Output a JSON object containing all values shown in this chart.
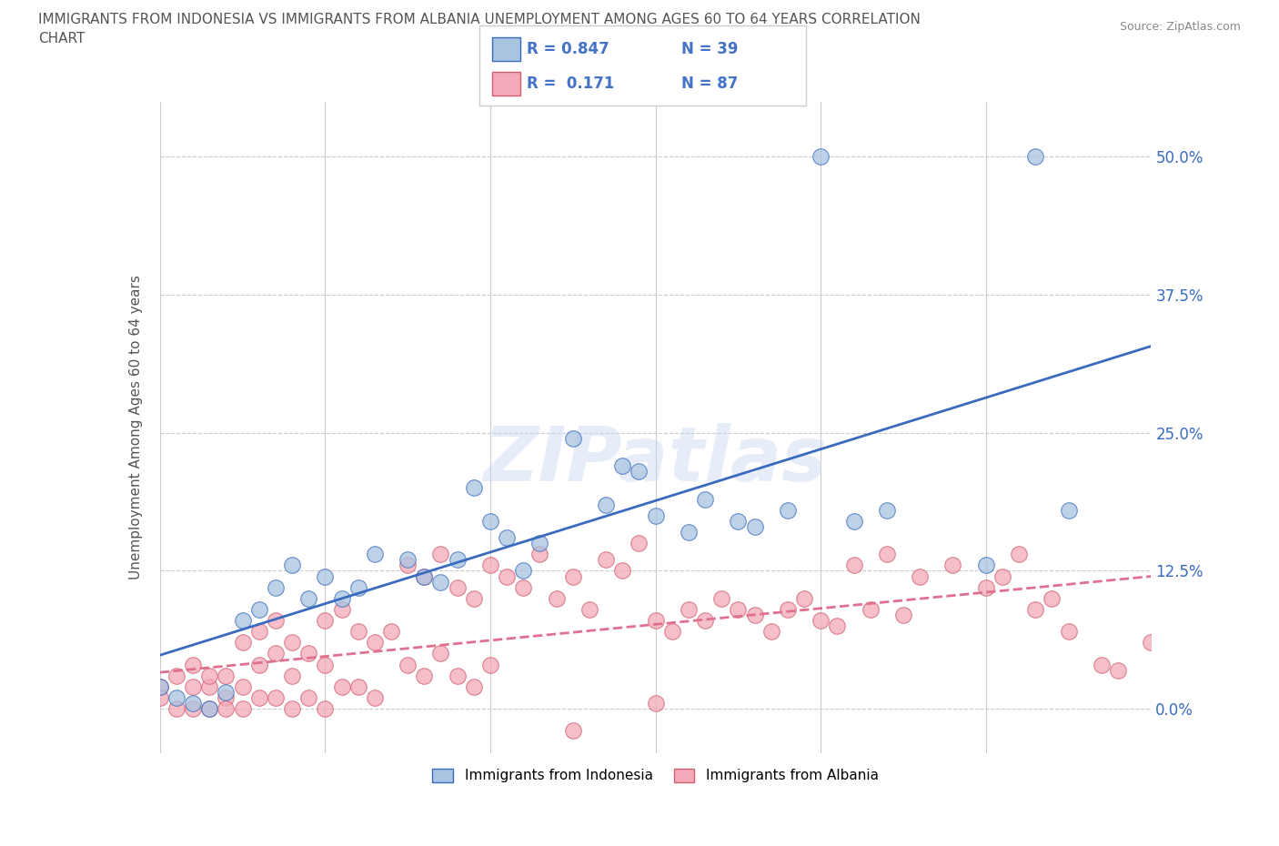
{
  "title_line1": "IMMIGRANTS FROM INDONESIA VS IMMIGRANTS FROM ALBANIA UNEMPLOYMENT AMONG AGES 60 TO 64 YEARS CORRELATION",
  "title_line2": "CHART",
  "source": "Source: ZipAtlas.com",
  "ylabel": "Unemployment Among Ages 60 to 64 years",
  "y_ticks_right": [
    "0.0%",
    "12.5%",
    "25.0%",
    "37.5%",
    "50.0%"
  ],
  "y_tick_vals": [
    0.0,
    0.125,
    0.25,
    0.375,
    0.5
  ],
  "watermark": "ZIPatlas",
  "indonesia_R": 0.847,
  "indonesia_N": 39,
  "albania_R": 0.171,
  "albania_N": 87,
  "indonesia_color": "#a8c4e0",
  "albania_color": "#f4a9b8",
  "indonesia_line_color": "#3a6bbf",
  "albania_line_color": "#e07090",
  "albania_edge_color": "#d06070",
  "legend_R_color": "#4472c4",
  "indonesia_points_x": [
    0.001,
    0.002,
    0.003,
    0.004,
    0.005,
    0.006,
    0.007,
    0.008,
    0.009,
    0.01,
    0.011,
    0.012,
    0.013,
    0.015,
    0.016,
    0.017,
    0.018,
    0.019,
    0.02,
    0.021,
    0.022,
    0.023,
    0.025,
    0.027,
    0.028,
    0.029,
    0.03,
    0.032,
    0.033,
    0.035,
    0.036,
    0.038,
    0.04,
    0.042,
    0.044,
    0.05,
    0.053,
    0.055,
    0.0
  ],
  "indonesia_points_y": [
    0.01,
    0.005,
    0.0,
    0.015,
    0.08,
    0.09,
    0.11,
    0.13,
    0.1,
    0.12,
    0.1,
    0.11,
    0.14,
    0.135,
    0.12,
    0.115,
    0.135,
    0.2,
    0.17,
    0.155,
    0.125,
    0.15,
    0.245,
    0.185,
    0.22,
    0.215,
    0.175,
    0.16,
    0.19,
    0.17,
    0.165,
    0.18,
    0.5,
    0.17,
    0.18,
    0.13,
    0.5,
    0.18,
    0.02
  ],
  "albania_points_x": [
    0.0,
    0.0,
    0.001,
    0.001,
    0.002,
    0.002,
    0.002,
    0.003,
    0.003,
    0.003,
    0.004,
    0.004,
    0.004,
    0.005,
    0.005,
    0.005,
    0.006,
    0.006,
    0.006,
    0.007,
    0.007,
    0.007,
    0.008,
    0.008,
    0.008,
    0.009,
    0.009,
    0.01,
    0.01,
    0.01,
    0.011,
    0.011,
    0.012,
    0.012,
    0.013,
    0.013,
    0.014,
    0.015,
    0.015,
    0.016,
    0.016,
    0.017,
    0.017,
    0.018,
    0.018,
    0.019,
    0.019,
    0.02,
    0.02,
    0.021,
    0.022,
    0.023,
    0.024,
    0.025,
    0.026,
    0.027,
    0.028,
    0.029,
    0.03,
    0.031,
    0.032,
    0.033,
    0.034,
    0.035,
    0.036,
    0.037,
    0.038,
    0.039,
    0.04,
    0.041,
    0.042,
    0.043,
    0.044,
    0.045,
    0.046,
    0.048,
    0.05,
    0.051,
    0.052,
    0.053,
    0.054,
    0.055,
    0.057,
    0.058,
    0.06,
    0.025,
    0.03
  ],
  "albania_points_y": [
    0.02,
    0.01,
    0.03,
    0.0,
    0.04,
    0.02,
    0.0,
    0.02,
    0.03,
    0.0,
    0.03,
    0.01,
    0.0,
    0.06,
    0.02,
    0.0,
    0.07,
    0.04,
    0.01,
    0.08,
    0.05,
    0.01,
    0.06,
    0.03,
    0.0,
    0.05,
    0.01,
    0.08,
    0.04,
    0.0,
    0.09,
    0.02,
    0.07,
    0.02,
    0.06,
    0.01,
    0.07,
    0.13,
    0.04,
    0.12,
    0.03,
    0.14,
    0.05,
    0.11,
    0.03,
    0.1,
    0.02,
    0.13,
    0.04,
    0.12,
    0.11,
    0.14,
    0.1,
    0.12,
    0.09,
    0.135,
    0.125,
    0.15,
    0.08,
    0.07,
    0.09,
    0.08,
    0.1,
    0.09,
    0.085,
    0.07,
    0.09,
    0.1,
    0.08,
    0.075,
    0.13,
    0.09,
    0.14,
    0.085,
    0.12,
    0.13,
    0.11,
    0.12,
    0.14,
    0.09,
    0.1,
    0.07,
    0.04,
    0.035,
    0.06,
    -0.02,
    0.005
  ]
}
